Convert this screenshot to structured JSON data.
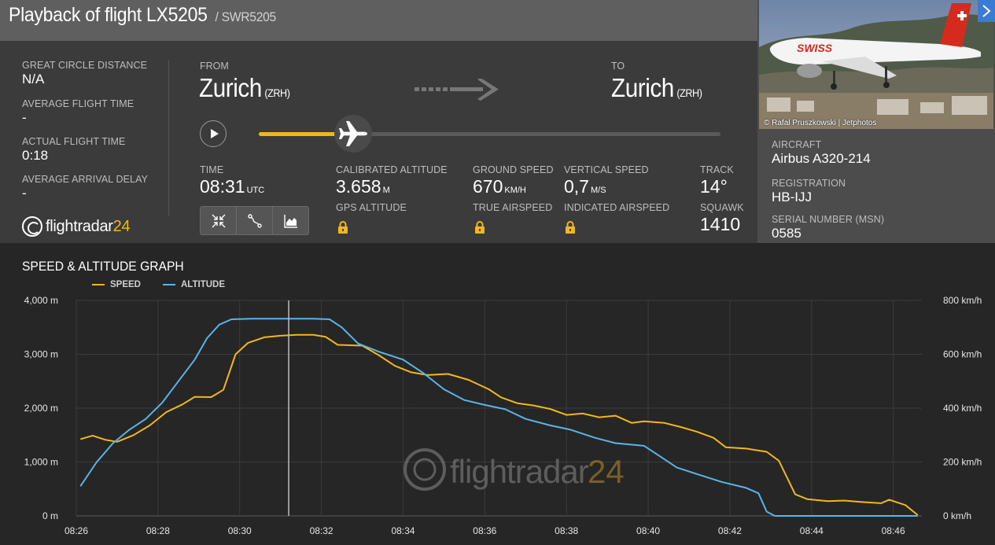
{
  "title": {
    "main": "Playback of flight LX5205",
    "sub": "/ SWR5205"
  },
  "stats": [
    {
      "label": "GREAT CIRCLE DISTANCE",
      "value": "N/A"
    },
    {
      "label": "AVERAGE FLIGHT TIME",
      "value": "-"
    },
    {
      "label": "ACTUAL FLIGHT TIME",
      "value": "0:18"
    },
    {
      "label": "AVERAGE ARRIVAL DELAY",
      "value": "-"
    }
  ],
  "logo": {
    "text_main": "flightradar",
    "text_accent": "24"
  },
  "route": {
    "from_label": "FROM",
    "from_city": "Zurich",
    "from_code": "(ZRH)",
    "to_label": "TO",
    "to_city": "Zurich",
    "to_code": "(ZRH)"
  },
  "playback": {
    "progress": 0.204
  },
  "metrics": {
    "time_label": "TIME",
    "time_value": "08:31",
    "time_unit": "UTC",
    "cal_alt_label": "CALIBRATED ALTITUDE",
    "cal_alt_value": "3.658",
    "cal_alt_unit": "M",
    "gps_alt_label": "GPS ALTITUDE",
    "ground_speed_label": "GROUND SPEED",
    "ground_speed_value": "670",
    "ground_speed_unit": "KM/H",
    "true_airspeed_label": "TRUE AIRSPEED",
    "vertical_speed_label": "VERTICAL SPEED",
    "vertical_speed_value": "0,7",
    "vertical_speed_unit": "M/S",
    "indicated_airspeed_label": "INDICATED AIRSPEED",
    "track_label": "TRACK",
    "track_value": "14°",
    "squawk_label": "SQUAWK",
    "squawk_value": "1410"
  },
  "aircraft": {
    "photo_credit": "© Rafal Pruszkowski | Jetphotos",
    "livery_text": "SWISS",
    "type_label": "AIRCRAFT",
    "type_value": "Airbus A320-214",
    "registration_label": "REGISTRATION",
    "registration_value": "HB-IJJ",
    "msn_label": "SERIAL NUMBER (MSN)",
    "msn_value": "0585"
  },
  "graph": {
    "title": "SPEED & ALTITUDE GRAPH",
    "legend_speed": "SPEED",
    "legend_altitude": "ALTITUDE",
    "watermark_main": "flightradar",
    "watermark_accent": "24"
  },
  "colors": {
    "speed": "#f2b71d",
    "altitude": "#5ab4e8",
    "accent": "#f2b71d",
    "close": "#3a7bd5"
  },
  "chart_data": {
    "type": "line",
    "title": "SPEED & ALTITUDE GRAPH",
    "x_ticks": [
      "08:26",
      "08:28",
      "08:30",
      "08:32",
      "08:34",
      "08:36",
      "08:38",
      "08:40",
      "08:42",
      "08:44",
      "08:46"
    ],
    "xlim": [
      "08:26",
      "08:46:42"
    ],
    "ylim_left": [
      0,
      4000
    ],
    "ylim_right": [
      0,
      800
    ],
    "y_ticks_left": [
      "0 m",
      "1,000 m",
      "2,000 m",
      "3,000 m",
      "4,000 m"
    ],
    "y_ticks_right": [
      "0 km/h",
      "200 km/h",
      "400 km/h",
      "600 km/h",
      "800 km/h"
    ],
    "cursor_x": "08:31:12",
    "grid": true,
    "legend_position": "top-left",
    "series": [
      {
        "name": "SPEED",
        "axis": "right",
        "unit": "km/h",
        "points": [
          [
            "08:26:06",
            285
          ],
          [
            "08:26:24",
            298
          ],
          [
            "08:26:42",
            283
          ],
          [
            "08:27:00",
            275
          ],
          [
            "08:27:24",
            300
          ],
          [
            "08:27:48",
            336
          ],
          [
            "08:28:12",
            385
          ],
          [
            "08:28:36",
            414
          ],
          [
            "08:28:54",
            442
          ],
          [
            "08:29:18",
            441
          ],
          [
            "08:29:36",
            468
          ],
          [
            "08:29:54",
            600
          ],
          [
            "08:30:12",
            642
          ],
          [
            "08:30:36",
            663
          ],
          [
            "08:31:00",
            669
          ],
          [
            "08:31:24",
            672
          ],
          [
            "08:31:48",
            672
          ],
          [
            "08:32:06",
            665
          ],
          [
            "08:32:24",
            635
          ],
          [
            "08:33:00",
            632
          ],
          [
            "08:33:24",
            597
          ],
          [
            "08:33:48",
            557
          ],
          [
            "08:34:12",
            533
          ],
          [
            "08:34:36",
            523
          ],
          [
            "08:35:06",
            527
          ],
          [
            "08:35:36",
            505
          ],
          [
            "08:36:06",
            470
          ],
          [
            "08:36:24",
            440
          ],
          [
            "08:36:48",
            418
          ],
          [
            "08:37:12",
            410
          ],
          [
            "08:37:36",
            397
          ],
          [
            "08:38:00",
            375
          ],
          [
            "08:38:24",
            380
          ],
          [
            "08:38:48",
            366
          ],
          [
            "08:39:12",
            372
          ],
          [
            "08:39:36",
            345
          ],
          [
            "08:39:54",
            351
          ],
          [
            "08:40:24",
            345
          ],
          [
            "08:40:48",
            330
          ],
          [
            "08:41:12",
            312
          ],
          [
            "08:41:36",
            290
          ],
          [
            "08:41:54",
            255
          ],
          [
            "08:42:24",
            250
          ],
          [
            "08:42:54",
            238
          ],
          [
            "08:43:12",
            205
          ],
          [
            "08:43:36",
            80
          ],
          [
            "08:43:54",
            62
          ],
          [
            "08:44:24",
            55
          ],
          [
            "08:44:48",
            57
          ],
          [
            "08:45:12",
            52
          ],
          [
            "08:45:42",
            47
          ],
          [
            "08:45:54",
            60
          ],
          [
            "08:46:18",
            40
          ],
          [
            "08:46:36",
            3
          ]
        ]
      },
      {
        "name": "ALTITUDE",
        "axis": "left",
        "unit": "m",
        "points": [
          [
            "08:26:06",
            550
          ],
          [
            "08:26:30",
            1000
          ],
          [
            "08:26:54",
            1350
          ],
          [
            "08:27:18",
            1600
          ],
          [
            "08:27:42",
            1800
          ],
          [
            "08:28:06",
            2100
          ],
          [
            "08:28:30",
            2500
          ],
          [
            "08:28:54",
            2900
          ],
          [
            "08:29:12",
            3300
          ],
          [
            "08:29:30",
            3550
          ],
          [
            "08:29:48",
            3650
          ],
          [
            "08:30:18",
            3660
          ],
          [
            "08:31:00",
            3660
          ],
          [
            "08:31:48",
            3660
          ],
          [
            "08:32:12",
            3650
          ],
          [
            "08:32:30",
            3500
          ],
          [
            "08:32:54",
            3200
          ],
          [
            "08:33:24",
            3050
          ],
          [
            "08:34:00",
            2900
          ],
          [
            "08:34:30",
            2650
          ],
          [
            "08:35:00",
            2350
          ],
          [
            "08:35:30",
            2150
          ],
          [
            "08:36:00",
            2060
          ],
          [
            "08:36:30",
            1980
          ],
          [
            "08:37:00",
            1800
          ],
          [
            "08:37:36",
            1680
          ],
          [
            "08:38:06",
            1600
          ],
          [
            "08:38:42",
            1450
          ],
          [
            "08:39:12",
            1350
          ],
          [
            "08:39:54",
            1300
          ],
          [
            "08:40:18",
            1100
          ],
          [
            "08:40:42",
            900
          ],
          [
            "08:41:18",
            750
          ],
          [
            "08:41:48",
            630
          ],
          [
            "08:42:24",
            520
          ],
          [
            "08:42:42",
            420
          ],
          [
            "08:42:54",
            80
          ],
          [
            "08:43:06",
            0
          ],
          [
            "08:46:36",
            0
          ]
        ]
      }
    ]
  }
}
